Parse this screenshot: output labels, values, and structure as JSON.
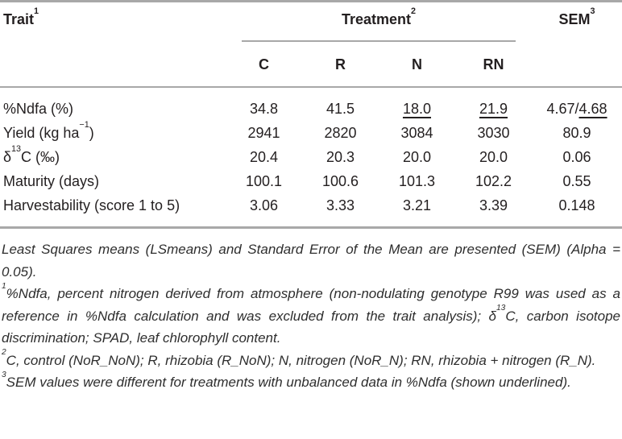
{
  "colors": {
    "rule": "#a8a8a8",
    "text": "#231f20",
    "footnote_text": "#2e2e2e"
  },
  "table": {
    "header": {
      "trait": {
        "text": "Trait",
        "sup": "1"
      },
      "treatment": {
        "text": "Treatment",
        "sup": "2"
      },
      "sem": {
        "text": "SEM",
        "sup": "3"
      },
      "treatment_columns": [
        "C",
        "R",
        "N",
        "RN"
      ]
    },
    "rows": [
      {
        "trait_parts": [
          {
            "text": "%Ndfa (%)"
          }
        ],
        "values": [
          {
            "text": "34.8"
          },
          {
            "text": "41.5"
          },
          {
            "text": "18.0",
            "underline": true
          },
          {
            "text": "21.9",
            "underline": true
          }
        ],
        "sem_parts": [
          {
            "text": "4.67/"
          },
          {
            "text": "4.68",
            "underline": true
          }
        ]
      },
      {
        "trait_parts": [
          {
            "text": "Yield (kg ha"
          },
          {
            "text": "−1",
            "sup": true
          },
          {
            "text": ")"
          }
        ],
        "values": [
          {
            "text": "2941"
          },
          {
            "text": "2820"
          },
          {
            "text": "3084"
          },
          {
            "text": "3030"
          }
        ],
        "sem_parts": [
          {
            "text": "80.9"
          }
        ]
      },
      {
        "trait_parts": [
          {
            "text": "δ"
          },
          {
            "text": "13",
            "sup": true
          },
          {
            "text": "C (‰)"
          }
        ],
        "values": [
          {
            "text": "20.4"
          },
          {
            "text": "20.3"
          },
          {
            "text": "20.0"
          },
          {
            "text": "20.0"
          }
        ],
        "sem_parts": [
          {
            "text": "0.06"
          }
        ]
      },
      {
        "trait_parts": [
          {
            "text": "Maturity (days)"
          }
        ],
        "values": [
          {
            "text": "100.1"
          },
          {
            "text": "100.6"
          },
          {
            "text": "101.3"
          },
          {
            "text": "102.2"
          }
        ],
        "sem_parts": [
          {
            "text": "0.55"
          }
        ]
      },
      {
        "trait_parts": [
          {
            "text": "Harvestability (score 1 to 5)"
          }
        ],
        "values": [
          {
            "text": "3.06"
          },
          {
            "text": "3.33"
          },
          {
            "text": "3.21"
          },
          {
            "text": "3.39"
          }
        ],
        "sem_parts": [
          {
            "text": "0.148"
          }
        ]
      }
    ]
  },
  "footnotes": [
    {
      "parts": [
        {
          "text": "Least Squares means (LSmeans) and Standard Error of the Mean are presented (SEM) (Alpha = 0.05)."
        }
      ]
    },
    {
      "parts": [
        {
          "text": "1",
          "sup": true
        },
        {
          "text": "%Ndfa, percent nitrogen derived from atmosphere (non-nodulating genotype R99 was used as a reference in %Ndfa calculation and was excluded from the trait analysis); δ"
        },
        {
          "text": "13",
          "sup": true
        },
        {
          "text": "C, carbon isotope discrimination; SPAD, leaf chlorophyll content."
        }
      ]
    },
    {
      "parts": [
        {
          "text": "2",
          "sup": true
        },
        {
          "text": "C, control (NoR_NoN); R, rhizobia (R_NoN); N, nitrogen (NoR_N); RN, rhizobia + nitrogen (R_N)."
        }
      ]
    },
    {
      "parts": [
        {
          "text": "3",
          "sup": true
        },
        {
          "text": "SEM values were different for treatments with unbalanced data in %Ndfa (shown underlined)."
        }
      ]
    }
  ]
}
